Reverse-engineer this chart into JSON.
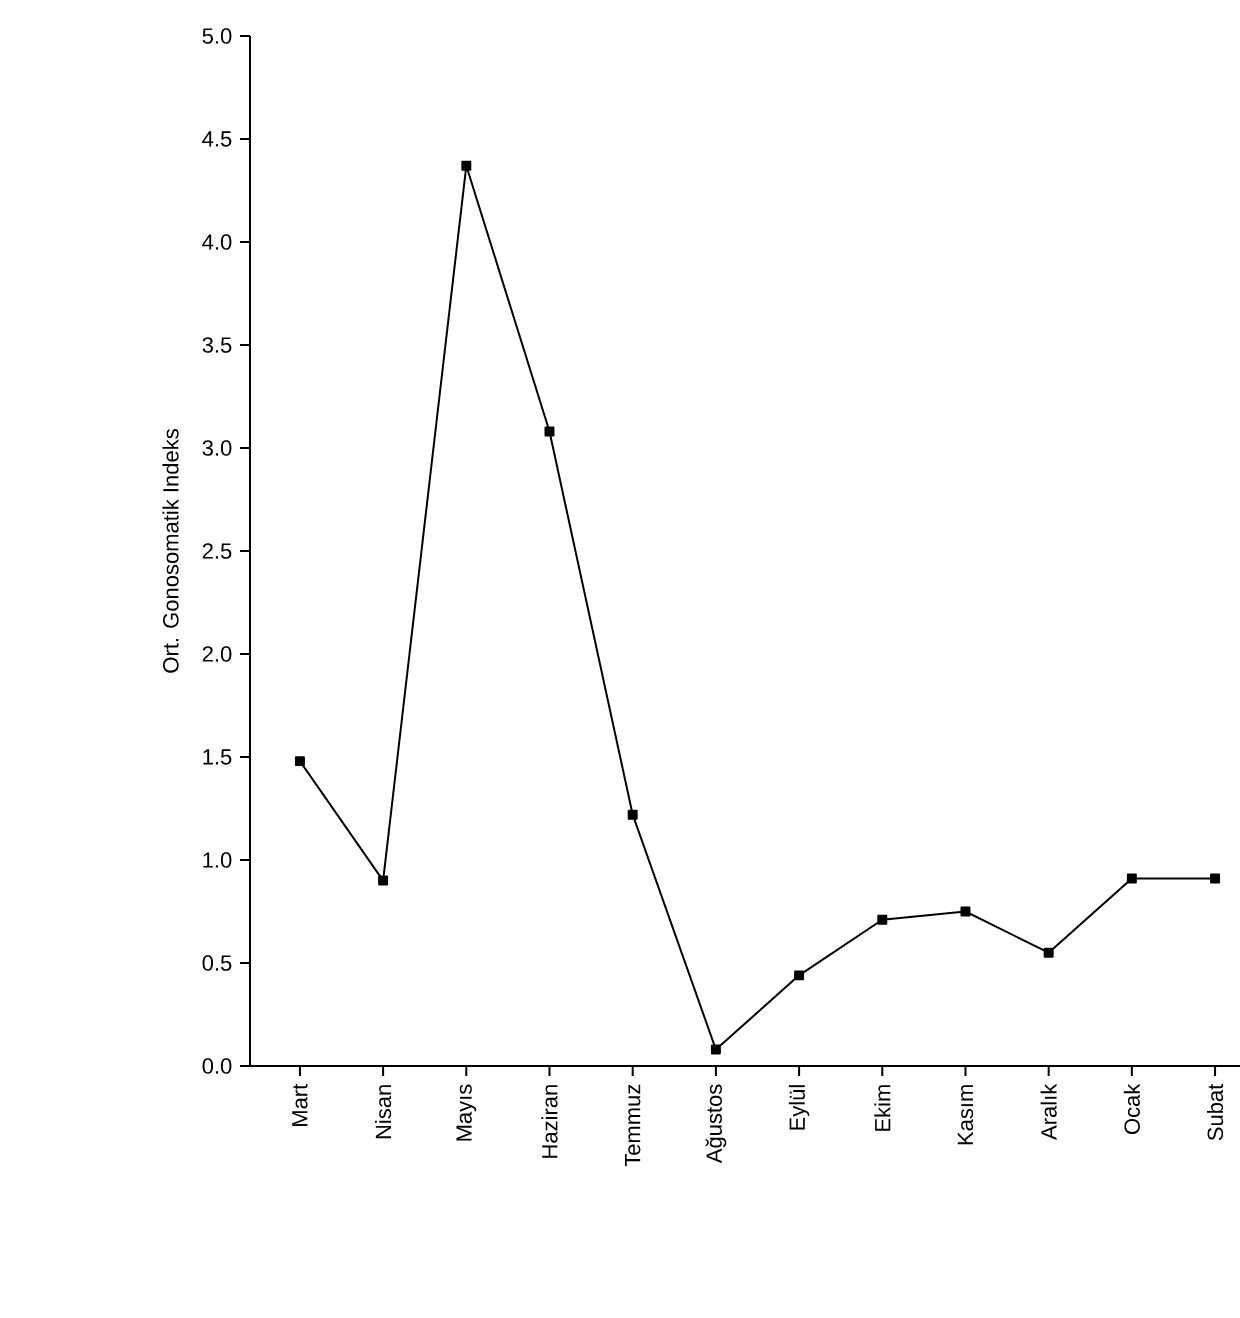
{
  "chart_data": {
    "type": "line",
    "ylabel": "Ort. Gonosomatik Indeks",
    "categories": [
      "Mart",
      "Nisan",
      "Mayıs",
      "Haziran",
      "Temmuz",
      "Ağustos",
      "Eylül",
      "Ekim",
      "Kasım",
      "Aralık",
      "Ocak",
      "Subat"
    ],
    "values": [
      1.48,
      0.9,
      4.37,
      3.08,
      1.22,
      0.08,
      0.44,
      0.71,
      0.75,
      0.55,
      0.91,
      0.91
    ],
    "color": "#000000",
    "marker": "square",
    "line_style": "solid",
    "ylim": [
      0,
      5
    ],
    "yticks": [
      {
        "value": 0,
        "label": "0.0"
      },
      0.5,
      {
        "value": 1,
        "label": "1.0"
      },
      1.5,
      {
        "value": 2,
        "label": "2.0"
      },
      2.5,
      {
        "value": 3,
        "label": "3.0"
      },
      3.5,
      {
        "value": 4,
        "label": "4.0"
      },
      4.5,
      {
        "value": 5,
        "label": "5.0"
      }
    ]
  }
}
